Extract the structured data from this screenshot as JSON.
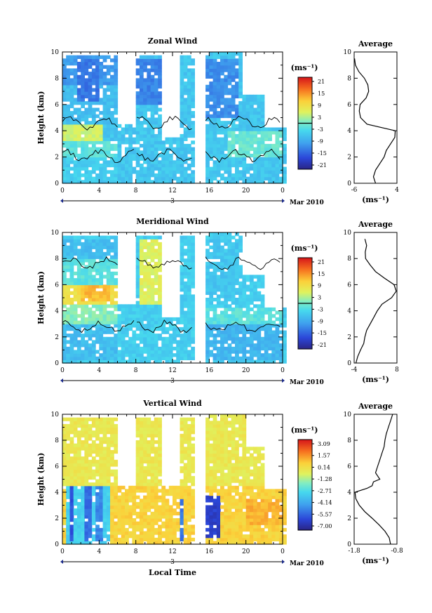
{
  "chart_data": [
    {
      "type": "heatmap",
      "title": "Zonal Wind",
      "ylabel": "Height (km)",
      "xlabel": "",
      "xlim": [
        0,
        24
      ],
      "ylim": [
        0,
        10
      ],
      "x_ticks": [
        "0",
        "4",
        "8",
        "12",
        "16",
        "20",
        "0"
      ],
      "y_ticks": [
        "0",
        "2",
        "4",
        "6",
        "8",
        "10"
      ],
      "date_label": "3",
      "month_label": "Mar 2010",
      "units": "(ms⁻¹)",
      "colorbar_ticks": [
        "21",
        "15",
        "9",
        "3",
        "-3",
        "-9",
        "-15",
        "-21"
      ],
      "colorbar_range": [
        -24,
        24
      ],
      "zero_contour_level": 0,
      "base_value": -6,
      "field": [
        {
          "x": [
            0,
            6
          ],
          "y": [
            7.5,
            9.7
          ],
          "v": -11
        },
        {
          "x": [
            0,
            6
          ],
          "y": [
            4.5,
            7.5
          ],
          "v": -7
        },
        {
          "x": [
            0,
            4.5
          ],
          "y": [
            3.3,
            4.5
          ],
          "v": 5
        },
        {
          "x": [
            0,
            6
          ],
          "y": [
            2.0,
            3.3
          ],
          "v": -2
        },
        {
          "x": [
            0,
            6
          ],
          "y": [
            0.2,
            2.0
          ],
          "v": -5
        },
        {
          "x": [
            1.5,
            4.0
          ],
          "y": [
            6.2,
            9.4
          ],
          "v": -14
        },
        {
          "x": [
            8,
            11
          ],
          "y": [
            6.0,
            9.6
          ],
          "v": -13
        },
        {
          "x": [
            15.5,
            19
          ],
          "y": [
            5.0,
            9.5
          ],
          "v": -12
        },
        {
          "x": [
            18,
            24
          ],
          "y": [
            2.0,
            4.0
          ],
          "v": -1
        },
        {
          "x": [
            15.5,
            24
          ],
          "y": [
            0.2,
            2.0
          ],
          "v": -6
        }
      ],
      "profile": {
        "title": "Average",
        "units": "(ms⁻¹)",
        "xlim": [
          -6,
          4
        ],
        "x_ticks": [
          "-6",
          "4"
        ],
        "y_ticks": [
          "0",
          "2",
          "4",
          "6",
          "8",
          "10"
        ],
        "height": [
          0.0,
          0.5,
          1.0,
          1.5,
          2.0,
          2.5,
          3.0,
          3.5,
          4.0,
          4.5,
          5.0,
          5.5,
          6.0,
          6.5,
          7.0,
          7.5,
          8.0,
          8.5,
          9.0,
          9.5
        ],
        "value": [
          -1.0,
          -1.5,
          -1.0,
          0.0,
          1.0,
          1.5,
          2.5,
          3.5,
          3.6,
          -3.0,
          -4.5,
          -4.8,
          -4.6,
          -3.2,
          -2.6,
          -2.8,
          -3.6,
          -4.9,
          -5.7,
          -5.9
        ]
      }
    },
    {
      "type": "heatmap",
      "title": "Meridional Wind",
      "ylabel": "Height (km)",
      "xlabel": "",
      "xlim": [
        0,
        24
      ],
      "ylim": [
        0,
        10
      ],
      "x_ticks": [
        "0",
        "4",
        "8",
        "12",
        "16",
        "20",
        "0"
      ],
      "y_ticks": [
        "0",
        "2",
        "4",
        "6",
        "8",
        "10"
      ],
      "date_label": "3",
      "month_label": "Mar 2010",
      "units": "(ms⁻¹)",
      "colorbar_ticks": [
        "21",
        "15",
        "9",
        "3",
        "-3",
        "-9",
        "-15",
        "-21"
      ],
      "colorbar_range": [
        -24,
        24
      ],
      "zero_contour_level": 0,
      "base_value": -5,
      "field": [
        {
          "x": [
            0,
            6
          ],
          "y": [
            8.0,
            9.6
          ],
          "v": -7
        },
        {
          "x": [
            0,
            6
          ],
          "y": [
            6.0,
            8.0
          ],
          "v": -2
        },
        {
          "x": [
            0,
            6
          ],
          "y": [
            4.5,
            6.0
          ],
          "v": 9
        },
        {
          "x": [
            2,
            5
          ],
          "y": [
            4.8,
            6.0
          ],
          "v": 13
        },
        {
          "x": [
            8.5,
            11
          ],
          "y": [
            4.5,
            9.5
          ],
          "v": 6
        },
        {
          "x": [
            0,
            6
          ],
          "y": [
            3.0,
            4.5
          ],
          "v": 1
        },
        {
          "x": [
            0,
            6
          ],
          "y": [
            0.2,
            3.0
          ],
          "v": -7
        },
        {
          "x": [
            15.5,
            24
          ],
          "y": [
            3.0,
            4.2
          ],
          "v": -2
        },
        {
          "x": [
            15.5,
            24
          ],
          "y": [
            0.3,
            3.0
          ],
          "v": -8
        },
        {
          "x": [
            15.5,
            19
          ],
          "y": [
            5.0,
            9.5
          ],
          "v": -6
        }
      ],
      "profile": {
        "title": "Average",
        "units": "(ms⁻¹)",
        "xlim": [
          -4,
          8
        ],
        "x_ticks": [
          "-4",
          "8"
        ],
        "y_ticks": [
          "0",
          "2",
          "4",
          "6",
          "8",
          "10"
        ],
        "height": [
          0.0,
          0.5,
          1.0,
          1.5,
          2.0,
          2.5,
          3.0,
          3.5,
          4.0,
          4.5,
          5.0,
          5.5,
          6.0,
          6.5,
          7.0,
          7.5,
          8.0,
          8.5,
          9.0,
          9.5
        ],
        "value": [
          -3.5,
          -3.0,
          -2.2,
          -1.3,
          -1.0,
          -0.5,
          0.5,
          1.5,
          2.5,
          3.8,
          6.5,
          7.8,
          7.2,
          4.5,
          2.0,
          0.5,
          -0.8,
          -0.9,
          -0.5,
          -1.0
        ]
      }
    },
    {
      "type": "heatmap",
      "title": "Vertical Wind",
      "ylabel": "Height (km)",
      "xlabel": "Local Time",
      "xlim": [
        0,
        24
      ],
      "ylim": [
        0,
        10
      ],
      "x_ticks": [
        "0",
        "4",
        "8",
        "12",
        "16",
        "20",
        "0"
      ],
      "y_ticks": [
        "0",
        "2",
        "4",
        "6",
        "8",
        "10"
      ],
      "date_label": "3",
      "month_label": "Mar 2010",
      "units": "(ms⁻¹)",
      "colorbar_ticks": [
        "3.09",
        "1.57",
        "0.14",
        "-1.28",
        "-2.71",
        "-4.14",
        "-5.57",
        "-7.00"
      ],
      "colorbar_range": [
        -8.0,
        3.8
      ],
      "base_value": 0.6,
      "field": [
        {
          "x": [
            0,
            24
          ],
          "y": [
            4.6,
            10.0
          ],
          "v": -0.2
        },
        {
          "x": [
            0.3,
            5
          ],
          "y": [
            0.1,
            4.6
          ],
          "v": -3.3
        },
        {
          "x": [
            0.8,
            1.4
          ],
          "y": [
            0.3,
            4.4
          ],
          "v": -6.3
        },
        {
          "x": [
            2.4,
            3.0
          ],
          "y": [
            0.3,
            4.4
          ],
          "v": -5.8
        },
        {
          "x": [
            3.6,
            4.2
          ],
          "y": [
            0.3,
            4.4
          ],
          "v": -5.2
        },
        {
          "x": [
            12.8,
            13.4
          ],
          "y": [
            0.2,
            3.5
          ],
          "v": -5.5
        },
        {
          "x": [
            15.8,
            17.2
          ],
          "y": [
            0.4,
            3.8
          ],
          "v": -6.8
        },
        {
          "x": [
            20,
            24
          ],
          "y": [
            1.5,
            3.5
          ],
          "v": 1.2
        }
      ],
      "profile": {
        "title": "Average",
        "units": "(ms⁻¹)",
        "xlim": [
          -1.8,
          -0.8
        ],
        "x_ticks": [
          "-1.8",
          "-0.8"
        ],
        "y_ticks": [
          "0",
          "2",
          "4",
          "6",
          "8",
          "10"
        ],
        "height": [
          0.0,
          0.5,
          1.0,
          1.5,
          2.0,
          2.5,
          3.0,
          3.5,
          4.0,
          4.3,
          4.5,
          4.8,
          5.0,
          5.5,
          6.0,
          6.5,
          7.0,
          7.5,
          8.0,
          8.5,
          9.0,
          9.5,
          10.0
        ],
        "value": [
          -0.95,
          -0.98,
          -1.08,
          -1.22,
          -1.38,
          -1.55,
          -1.68,
          -1.76,
          -1.78,
          -1.5,
          -1.38,
          -1.35,
          -1.2,
          -1.3,
          -1.25,
          -1.2,
          -1.15,
          -1.1,
          -1.08,
          -1.05,
          -1.0,
          -0.95,
          -0.9
        ]
      }
    }
  ]
}
